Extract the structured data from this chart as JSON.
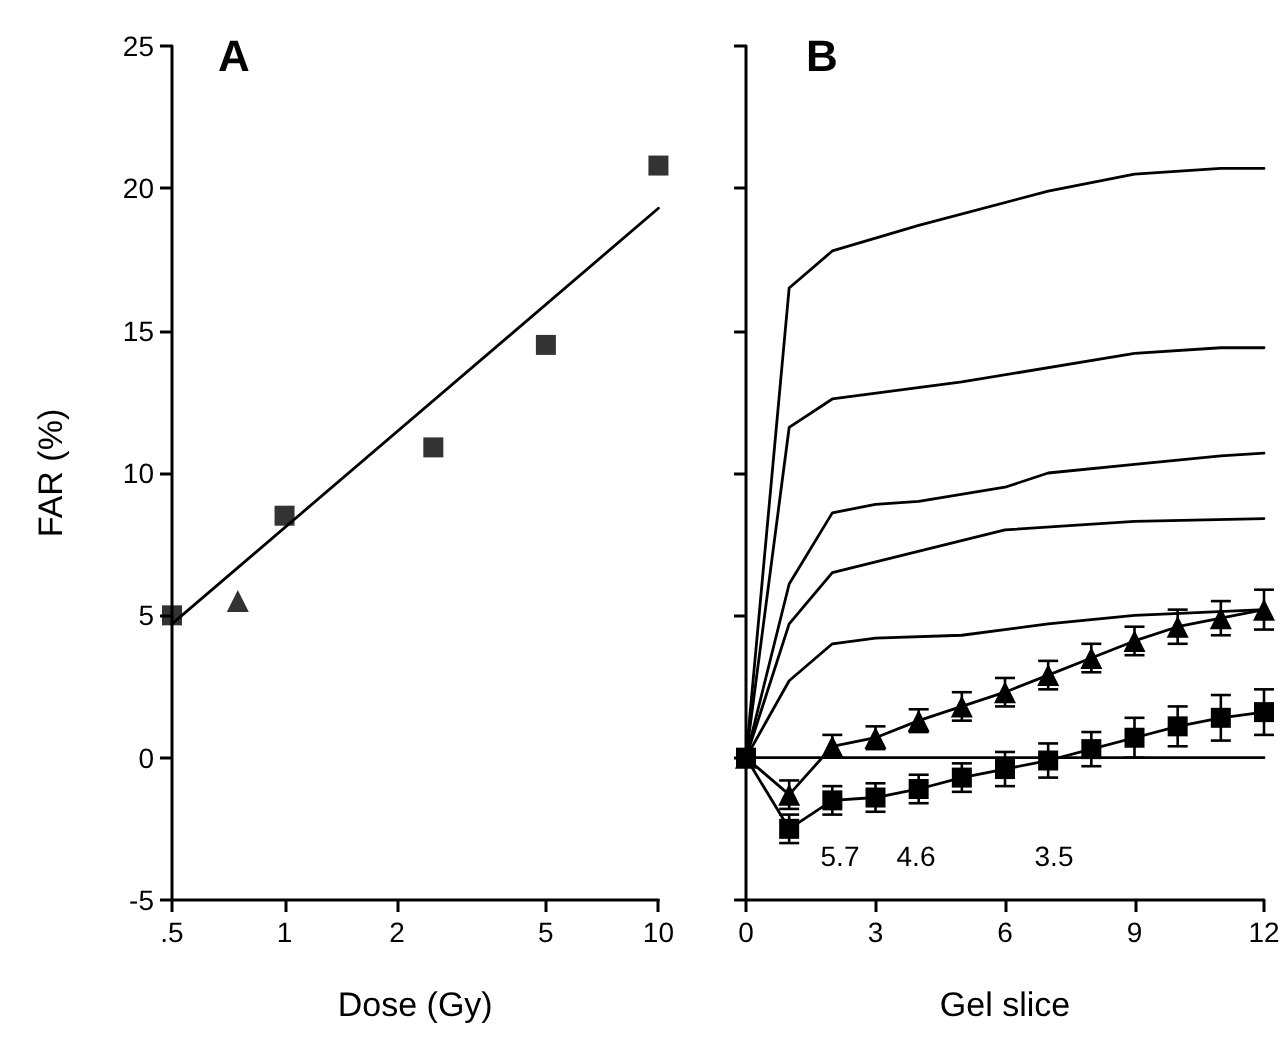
{
  "chart_data": [
    {
      "type": "scatter",
      "title": "A",
      "xlabel": "Dose (Gy)",
      "ylabel": "FAR (%)",
      "log": "x",
      "xlim": [
        0.5,
        10
      ],
      "xticks": [
        {
          "value": 0.5,
          "label": ".5"
        },
        1,
        2,
        5,
        10
      ],
      "ylim": [
        -5,
        25
      ],
      "yticks": [
        -5,
        0,
        5,
        10,
        15,
        20,
        25
      ],
      "grid": false,
      "series": [
        {
          "marker": "square",
          "color": "#000000",
          "x": [
            0.5,
            1,
            2.5,
            5,
            10
          ],
          "values": [
            5,
            8.5,
            10.9,
            14.5,
            20.8
          ]
        },
        {
          "marker": "triangle",
          "color": "#000000",
          "x": [
            0.75
          ],
          "values": [
            5.5
          ]
        },
        {
          "type": "line",
          "marker": "none",
          "color": "#000000",
          "x": [
            0.5,
            10
          ],
          "values": [
            4.7,
            19.3
          ]
        }
      ]
    },
    {
      "type": "line",
      "title": "B",
      "xlabel": "Gel slice",
      "xlim": [
        0,
        12
      ],
      "xticks": [
        0,
        3,
        6,
        9,
        12
      ],
      "ylim": [
        -5,
        25
      ],
      "yticks": [
        -5,
        0,
        5,
        10,
        15,
        20,
        25
      ],
      "tick_labels": "x",
      "grid": false,
      "annotations": [
        "5.7",
        "4.6",
        "3.5"
      ],
      "series": [
        {
          "marker": "none",
          "color": "#000000",
          "x": [
            0,
            1,
            2,
            4,
            7,
            9,
            11,
            12
          ],
          "values": [
            0,
            16.5,
            17.8,
            18.7,
            19.9,
            20.5,
            20.7,
            20.7
          ]
        },
        {
          "marker": "none",
          "color": "#000000",
          "x": [
            0,
            1,
            2,
            5,
            9,
            11,
            12
          ],
          "values": [
            0,
            11.6,
            12.6,
            13.2,
            14.2,
            14.4,
            14.4
          ]
        },
        {
          "marker": "none",
          "color": "#000000",
          "x": [
            0,
            1,
            2,
            3,
            4,
            6,
            7,
            9,
            11,
            12
          ],
          "values": [
            0,
            6.1,
            8.6,
            8.9,
            9,
            9.5,
            10,
            10.3,
            10.6,
            10.7
          ]
        },
        {
          "marker": "none",
          "color": "#000000",
          "x": [
            0,
            1,
            2,
            6,
            9,
            12
          ],
          "values": [
            0,
            4.7,
            6.5,
            8,
            8.3,
            8.4
          ]
        },
        {
          "marker": "none",
          "color": "#000000",
          "x": [
            0,
            1,
            2,
            3,
            5,
            7,
            9,
            12
          ],
          "values": [
            0,
            2.7,
            4,
            4.2,
            4.3,
            4.7,
            5,
            5.2
          ]
        },
        {
          "marker": "none",
          "color": "#000000",
          "x": [
            0,
            12
          ],
          "values": [
            0,
            0
          ]
        },
        {
          "marker": "triangle",
          "color": "#000000",
          "x": [
            0,
            1,
            2,
            3,
            4,
            5,
            6,
            7,
            8,
            9,
            10,
            11,
            12
          ],
          "values": [
            0,
            -1.3,
            0.4,
            0.7,
            1.3,
            1.8,
            2.3,
            2.9,
            3.5,
            4.1,
            4.6,
            4.9,
            5.2
          ],
          "errors": [
            null,
            0.5,
            0.4,
            0.4,
            0.4,
            0.5,
            0.5,
            0.5,
            0.5,
            0.5,
            0.6,
            0.6,
            0.7
          ]
        },
        {
          "marker": "square",
          "color": "#000000",
          "x": [
            0,
            1,
            2,
            3,
            4,
            5,
            6,
            7,
            8,
            9,
            10,
            11,
            12
          ],
          "values": [
            0,
            -2.5,
            -1.5,
            -1.4,
            -1.1,
            -0.7,
            -0.4,
            -0.1,
            0.3,
            0.7,
            1.1,
            1.4,
            1.6
          ],
          "errors": [
            null,
            0.5,
            0.5,
            0.5,
            0.5,
            0.5,
            0.6,
            0.6,
            0.6,
            0.7,
            0.7,
            0.8,
            0.8
          ]
        }
      ]
    }
  ]
}
